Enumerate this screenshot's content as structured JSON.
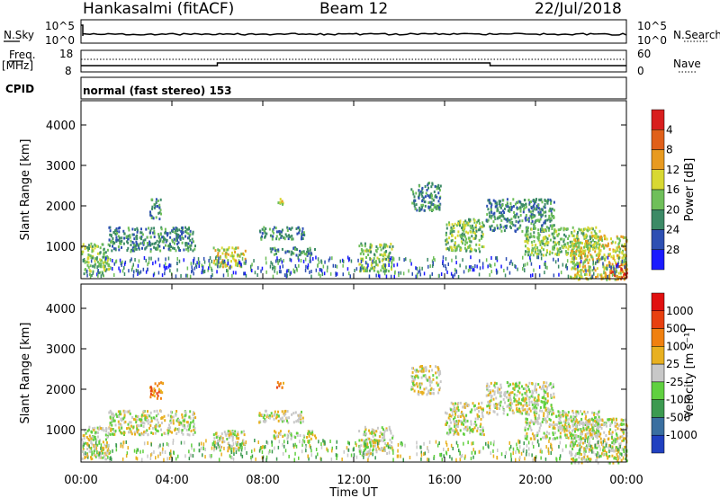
{
  "header": {
    "station": "Hankasalmi (fitACF)",
    "beam": "Beam 12",
    "date": "22/Jul/2018"
  },
  "housekeeping": {
    "nsky_label": "N.Sky",
    "nsearch_label": "N.Search",
    "nsky_scale_top": "10^5",
    "nsky_scale_bottom": "10^0",
    "freq_label": "Freq.",
    "freq_unit": "[MHz]",
    "freq_top": "18",
    "freq_bottom": "8",
    "nave_label": "Nave",
    "nave_top": "60",
    "nave_bottom": "0",
    "cpid_label": "CPID",
    "cpid_text": "normal (fast stereo) 153"
  },
  "panels": {
    "y_axis_label": "Slant Range [km]",
    "x_axis_label": "Time UT",
    "power_label": "Power [dB]",
    "velocity_label": "Velocity [m s⁻¹]"
  },
  "chart_data": [
    {
      "type": "heatmap",
      "name": "power",
      "xlabel": "Time UT",
      "ylabel": "Slant Range [km]",
      "xlim_hours": [
        0,
        24
      ],
      "ylim_km": [
        200,
        4600
      ],
      "x_ticks": [
        "00:00",
        "04:00",
        "08:00",
        "12:00",
        "16:00",
        "20:00",
        "00:00"
      ],
      "y_ticks": [
        1000,
        2000,
        3000,
        4000
      ],
      "colorbar": {
        "label": "Power [dB]",
        "ticks": [
          "4",
          "8",
          "12",
          "16",
          "20",
          "24",
          "28"
        ],
        "colors": [
          "#1a1aff",
          "#2d4fb3",
          "#3c8a66",
          "#6fbf5a",
          "#d8d832",
          "#e89a20",
          "#e0601a",
          "#d81e1e"
        ]
      },
      "scatter_regions": [
        {
          "t": [
            0.0,
            1.2
          ],
          "r": [
            300,
            1100
          ],
          "level": 3
        },
        {
          "t": [
            1.2,
            5.0
          ],
          "r": [
            900,
            1500
          ],
          "level": 2
        },
        {
          "t": [
            3.0,
            3.5
          ],
          "r": [
            1700,
            2200
          ],
          "level": 2
        },
        {
          "t": [
            5.8,
            7.2
          ],
          "r": [
            500,
            1000
          ],
          "level": 4
        },
        {
          "t": [
            7.8,
            9.8
          ],
          "r": [
            1200,
            1500
          ],
          "level": 2
        },
        {
          "t": [
            8.3,
            10.3
          ],
          "r": [
            800,
            1000
          ],
          "level": 2
        },
        {
          "t": [
            8.5,
            8.9
          ],
          "r": [
            2050,
            2200
          ],
          "level": 4
        },
        {
          "t": [
            12.2,
            13.7
          ],
          "r": [
            400,
            1100
          ],
          "level": 3
        },
        {
          "t": [
            14.5,
            15.8
          ],
          "r": [
            1900,
            2600
          ],
          "level": 2
        },
        {
          "t": [
            16.0,
            17.7
          ],
          "r": [
            900,
            1700
          ],
          "level": 3
        },
        {
          "t": [
            17.8,
            20.8
          ],
          "r": [
            1400,
            2200
          ],
          "level": 2
        },
        {
          "t": [
            19.5,
            22.8
          ],
          "r": [
            800,
            1500
          ],
          "level": 3
        },
        {
          "t": [
            21.5,
            24.0
          ],
          "r": [
            200,
            1300
          ],
          "level": 4
        },
        {
          "t": [
            23.2,
            24.0
          ],
          "r": [
            200,
            600
          ],
          "level": 6
        }
      ]
    },
    {
      "type": "heatmap",
      "name": "velocity",
      "xlabel": "Time UT",
      "ylabel": "Slant Range [km]",
      "xlim_hours": [
        0,
        24
      ],
      "ylim_km": [
        200,
        4600
      ],
      "x_ticks": [
        "00:00",
        "04:00",
        "08:00",
        "12:00",
        "16:00",
        "20:00",
        "00:00"
      ],
      "y_ticks": [
        1000,
        2000,
        3000,
        4000
      ],
      "colorbar": {
        "label": "Velocity [m s⁻¹]",
        "ticks": [
          "1000",
          "500",
          "100",
          "25",
          "-25",
          "-100",
          "-500",
          "-1000"
        ],
        "colors": [
          "#2040c0",
          "#3a6fa0",
          "#3c9a50",
          "#60d040",
          "#c8c8c8",
          "#e8b020",
          "#f08010",
          "#e84010",
          "#e01010"
        ]
      },
      "scatter_regions": [
        {
          "t": [
            0.0,
            1.2
          ],
          "r": [
            300,
            1100
          ],
          "level": 4
        },
        {
          "t": [
            1.2,
            5.0
          ],
          "r": [
            900,
            1500
          ],
          "level": 4
        },
        {
          "t": [
            3.0,
            3.6
          ],
          "r": [
            1800,
            2200
          ],
          "level": 6
        },
        {
          "t": [
            5.8,
            7.2
          ],
          "r": [
            500,
            1000
          ],
          "level": 4
        },
        {
          "t": [
            7.8,
            9.8
          ],
          "r": [
            1200,
            1500
          ],
          "level": 4
        },
        {
          "t": [
            8.3,
            10.3
          ],
          "r": [
            800,
            1000
          ],
          "level": 4
        },
        {
          "t": [
            8.5,
            8.9
          ],
          "r": [
            2050,
            2200
          ],
          "level": 6
        },
        {
          "t": [
            12.2,
            13.7
          ],
          "r": [
            400,
            1100
          ],
          "level": 4
        },
        {
          "t": [
            14.5,
            15.8
          ],
          "r": [
            1900,
            2600
          ],
          "level": 4
        },
        {
          "t": [
            16.0,
            17.7
          ],
          "r": [
            900,
            1700
          ],
          "level": 4
        },
        {
          "t": [
            17.8,
            20.8
          ],
          "r": [
            1400,
            2200
          ],
          "level": 4
        },
        {
          "t": [
            19.5,
            22.8
          ],
          "r": [
            800,
            1500
          ],
          "level": 4
        },
        {
          "t": [
            21.5,
            24.0
          ],
          "r": [
            200,
            1300
          ],
          "level": 4
        }
      ]
    }
  ]
}
